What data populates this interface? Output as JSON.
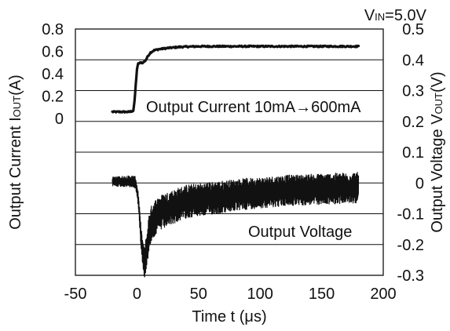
{
  "chart_data": {
    "type": "line",
    "annotation_vin": "V",
    "annotation_vin_sub": "IN",
    "annotation_vin_value": "=5.0V",
    "xlabel": "Time t (μs)",
    "ylabel_left_prefix": "Output Current I",
    "ylabel_left_sub": "OUT",
    "ylabel_left_suffix": "(A)",
    "ylabel_right_prefix": "Output Voltage V",
    "ylabel_right_sub": "OUT",
    "ylabel_right_suffix": "(V)",
    "xlim": [
      -50,
      200
    ],
    "xticks": [
      "-50",
      "0",
      "50",
      "100",
      "150",
      "200"
    ],
    "ylim_left": [
      -1.4,
      0.8
    ],
    "yticks_left": [
      "0.8",
      "0.6",
      "0.4",
      "0.2",
      "0"
    ],
    "ylim_right": [
      -0.3,
      0.5
    ],
    "yticks_right": [
      "0.5",
      "0.4",
      "0.3",
      "0.2",
      "0.1",
      "0",
      "-0.1",
      "-0.2",
      "-0.3"
    ],
    "gridlines_right": [
      0.4,
      0.3,
      0.2,
      0.1,
      0,
      -0.1,
      -0.2
    ],
    "series": [
      {
        "label": "Output Current 10mA→600mA",
        "axis": "left",
        "color": "#111111",
        "points": [
          [
            -20,
            0.06
          ],
          [
            -13,
            0.06
          ],
          [
            -6,
            0.06
          ],
          [
            -3,
            0.07
          ],
          [
            -2,
            0.15
          ],
          [
            -1,
            0.3
          ],
          [
            0,
            0.44
          ],
          [
            1,
            0.49
          ],
          [
            3,
            0.5
          ],
          [
            5,
            0.5
          ],
          [
            7,
            0.52
          ],
          [
            9,
            0.56
          ],
          [
            11,
            0.59
          ],
          [
            14,
            0.61
          ],
          [
            18,
            0.62
          ],
          [
            25,
            0.63
          ],
          [
            35,
            0.64
          ],
          [
            50,
            0.645
          ],
          [
            80,
            0.645
          ],
          [
            120,
            0.645
          ],
          [
            180,
            0.645
          ]
        ]
      },
      {
        "label": "Output Voltage",
        "axis": "right",
        "color": "#111111",
        "points": [
          [
            -20,
            0.005
          ],
          [
            -10,
            0.005
          ],
          [
            -3,
            0.005
          ],
          [
            -1,
            0.0
          ],
          [
            1,
            -0.05
          ],
          [
            3,
            -0.16
          ],
          [
            5,
            -0.24
          ],
          [
            6,
            -0.26
          ],
          [
            8,
            -0.22
          ],
          [
            10,
            -0.15
          ],
          [
            13,
            -0.12
          ],
          [
            18,
            -0.1
          ],
          [
            25,
            -0.085
          ],
          [
            40,
            -0.06
          ],
          [
            60,
            -0.05
          ],
          [
            90,
            -0.035
          ],
          [
            120,
            -0.025
          ],
          [
            150,
            -0.02
          ],
          [
            180,
            -0.015
          ]
        ],
        "noise_amplitude": [
          [
            -20,
            0.015
          ],
          [
            0,
            0.02
          ],
          [
            8,
            0.06
          ],
          [
            30,
            0.055
          ],
          [
            100,
            0.05
          ],
          [
            180,
            0.05
          ]
        ]
      }
    ]
  }
}
